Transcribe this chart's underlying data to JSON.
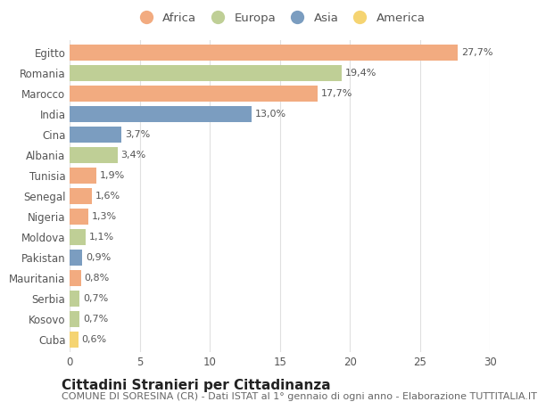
{
  "countries": [
    "Egitto",
    "Romania",
    "Marocco",
    "India",
    "Cina",
    "Albania",
    "Tunisia",
    "Senegal",
    "Nigeria",
    "Moldova",
    "Pakistan",
    "Mauritania",
    "Serbia",
    "Kosovo",
    "Cuba"
  ],
  "values": [
    27.7,
    19.4,
    17.7,
    13.0,
    3.7,
    3.4,
    1.9,
    1.6,
    1.3,
    1.1,
    0.9,
    0.8,
    0.7,
    0.7,
    0.6
  ],
  "labels": [
    "27,7%",
    "19,4%",
    "17,7%",
    "13,0%",
    "3,7%",
    "3,4%",
    "1,9%",
    "1,6%",
    "1,3%",
    "1,1%",
    "0,9%",
    "0,8%",
    "0,7%",
    "0,7%",
    "0,6%"
  ],
  "continents": [
    "Africa",
    "Europa",
    "Africa",
    "Asia",
    "Asia",
    "Europa",
    "Africa",
    "Africa",
    "Africa",
    "Europa",
    "Asia",
    "Africa",
    "Europa",
    "Europa",
    "America"
  ],
  "colors": {
    "Africa": "#F2AB80",
    "Europa": "#BFCF96",
    "Asia": "#7B9DC0",
    "America": "#F5D472"
  },
  "legend_order": [
    "Africa",
    "Europa",
    "Asia",
    "America"
  ],
  "xlim": [
    0,
    30
  ],
  "xticks": [
    0,
    5,
    10,
    15,
    20,
    25,
    30
  ],
  "title": "Cittadini Stranieri per Cittadinanza",
  "subtitle": "COMUNE DI SORESINA (CR) - Dati ISTAT al 1° gennaio di ogni anno - Elaborazione TUTTITALIA.IT",
  "background_color": "#ffffff",
  "grid_color": "#e0e0e0",
  "bar_height": 0.75,
  "title_fontsize": 11,
  "subtitle_fontsize": 8,
  "label_fontsize": 8,
  "tick_fontsize": 8.5,
  "legend_fontsize": 9.5
}
